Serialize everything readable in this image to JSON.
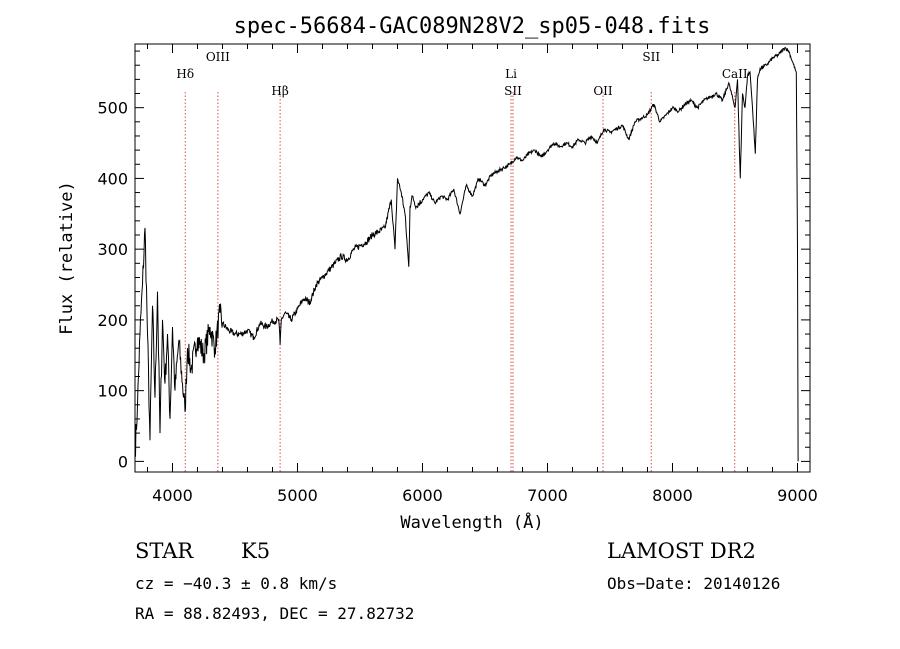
{
  "chart_data": {
    "type": "line",
    "title": "spec-56684-GAC089N28V2_sp05-048.fits",
    "xlabel": "Wavelength (Å)",
    "ylabel": "Flux (relative)",
    "xlim": [
      3700,
      9100
    ],
    "ylim": [
      -15,
      590
    ],
    "xticks": [
      4000,
      5000,
      6000,
      7000,
      8000,
      9000
    ],
    "yticks": [
      0,
      100,
      200,
      300,
      400,
      500
    ],
    "xtick_labels": [
      "4000",
      "5000",
      "6000",
      "7000",
      "8000",
      "9000"
    ],
    "ytick_labels": [
      "0",
      "100",
      "200",
      "300",
      "400",
      "500"
    ],
    "grid": false,
    "line_color": "#000000",
    "marker_color": "#d9534f",
    "spectrum": {
      "x": [
        3700,
        3720,
        3740,
        3760,
        3780,
        3800,
        3820,
        3840,
        3860,
        3880,
        3900,
        3920,
        3940,
        3960,
        3980,
        4000,
        4020,
        4050,
        4080,
        4100,
        4120,
        4150,
        4200,
        4250,
        4300,
        4340,
        4380,
        4400,
        4450,
        4500,
        4550,
        4600,
        4650,
        4700,
        4750,
        4800,
        4850,
        4861,
        4870,
        4900,
        4950,
        5000,
        5050,
        5100,
        5150,
        5200,
        5250,
        5300,
        5350,
        5400,
        5450,
        5500,
        5550,
        5600,
        5650,
        5700,
        5750,
        5780,
        5800,
        5830,
        5860,
        5890,
        5900,
        5920,
        5950,
        6000,
        6050,
        6100,
        6150,
        6200,
        6250,
        6300,
        6350,
        6400,
        6450,
        6500,
        6550,
        6600,
        6650,
        6700,
        6750,
        6800,
        6850,
        6900,
        6950,
        7000,
        7050,
        7100,
        7150,
        7200,
        7250,
        7300,
        7350,
        7400,
        7450,
        7500,
        7550,
        7600,
        7650,
        7700,
        7750,
        7800,
        7850,
        7900,
        7950,
        8000,
        8050,
        8100,
        8150,
        8200,
        8250,
        8300,
        8350,
        8400,
        8450,
        8500,
        8520,
        8542,
        8560,
        8580,
        8600,
        8620,
        8640,
        8662,
        8680,
        8700,
        8750,
        8800,
        8850,
        8900,
        8930,
        8960,
        8990,
        9000,
        9005
      ],
      "y": [
        10,
        80,
        180,
        250,
        330,
        180,
        30,
        220,
        90,
        240,
        40,
        200,
        110,
        180,
        60,
        190,
        100,
        170,
        110,
        70,
        160,
        130,
        175,
        150,
        190,
        160,
        210,
        195,
        185,
        180,
        180,
        185,
        175,
        195,
        190,
        198,
        200,
        165,
        200,
        210,
        200,
        215,
        230,
        225,
        250,
        260,
        270,
        280,
        290,
        285,
        300,
        305,
        310,
        320,
        325,
        330,
        370,
        300,
        400,
        380,
        350,
        275,
        360,
        375,
        360,
        370,
        380,
        365,
        375,
        370,
        385,
        350,
        390,
        375,
        400,
        390,
        405,
        410,
        415,
        420,
        430,
        425,
        435,
        440,
        430,
        440,
        450,
        445,
        450,
        445,
        455,
        450,
        460,
        450,
        470,
        465,
        470,
        475,
        455,
        480,
        485,
        490,
        505,
        480,
        490,
        500,
        495,
        505,
        510,
        500,
        510,
        515,
        520,
        510,
        535,
        500,
        540,
        400,
        520,
        500,
        545,
        550,
        500,
        435,
        540,
        555,
        560,
        570,
        575,
        585,
        580,
        565,
        550,
        300,
        0
      ]
    },
    "line_markers": [
      {
        "x": 4102,
        "label": "Hδ"
      },
      {
        "x": 4363,
        "label": "OIII"
      },
      {
        "x": 4861,
        "label": "Hβ"
      },
      {
        "x": 6708,
        "label": "Li"
      },
      {
        "x": 6724,
        "label": "SII"
      },
      {
        "x": 7444,
        "label": "OII"
      },
      {
        "x": 7830,
        "label": "SII"
      },
      {
        "x": 8498,
        "label": "CaII"
      }
    ]
  },
  "info": {
    "class": "STAR",
    "subclass": "K5",
    "survey": "LAMOST DR2",
    "cz": "cz = −40.3 ± 0.8 km/s",
    "obs_date": "Obs−Date: 20140126",
    "coords": "RA =  88.82493, DEC =  27.82732"
  }
}
